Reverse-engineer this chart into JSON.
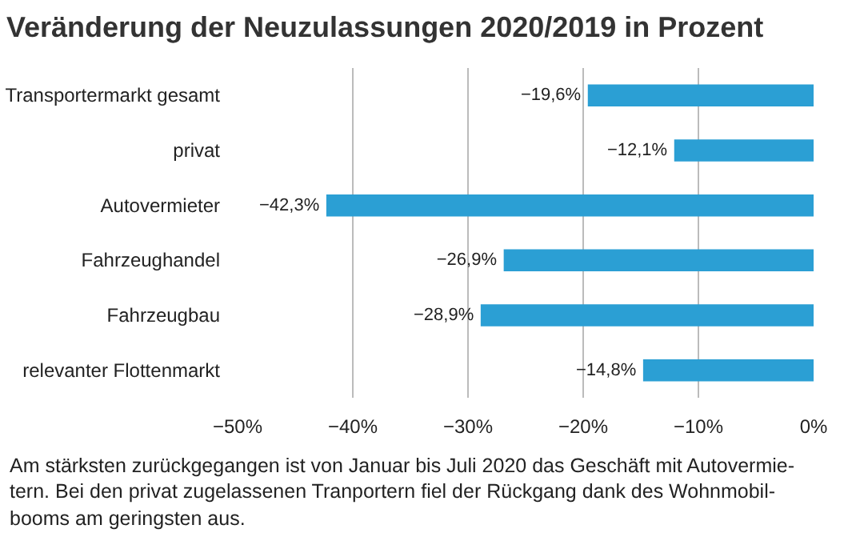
{
  "chart_data": {
    "type": "bar",
    "orientation": "horizontal",
    "title": "Veränderung der Neuzulassungen 2020/2019 in Prozent",
    "categories": [
      "Transportermarkt gesamt",
      "privat",
      "Autovermieter",
      "Fahrzeughandel",
      "Fahrzeugbau",
      "relevanter Flottenmarkt"
    ],
    "values": [
      -19.6,
      -12.1,
      -42.3,
      -26.9,
      -28.9,
      -14.8
    ],
    "value_labels": [
      "−19,6%",
      "−12,1%",
      "−42,3%",
      "−26,9%",
      "−28,9%",
      "−14,8%"
    ],
    "color": "#2b9fd4",
    "xlim": [
      -50,
      0
    ],
    "xticks": [
      {
        "value": -50,
        "label": "−50%"
      },
      {
        "value": -40,
        "label": "−40%"
      },
      {
        "value": -30,
        "label": "−30%"
      },
      {
        "value": -20,
        "label": "−20%"
      },
      {
        "value": -10,
        "label": "−10%"
      },
      {
        "value": 0,
        "label": "0%"
      }
    ],
    "grid": "x",
    "annotations": [
      "Am stärksten zurückgegangen ist von Januar bis Juli 2020 das Geschäft mit Autovermie-\ntern. Bei den privat zugelassenen Tranportern fiel der Rückgang dank des Wohnmobil-\nbooms am geringsten aus."
    ]
  }
}
